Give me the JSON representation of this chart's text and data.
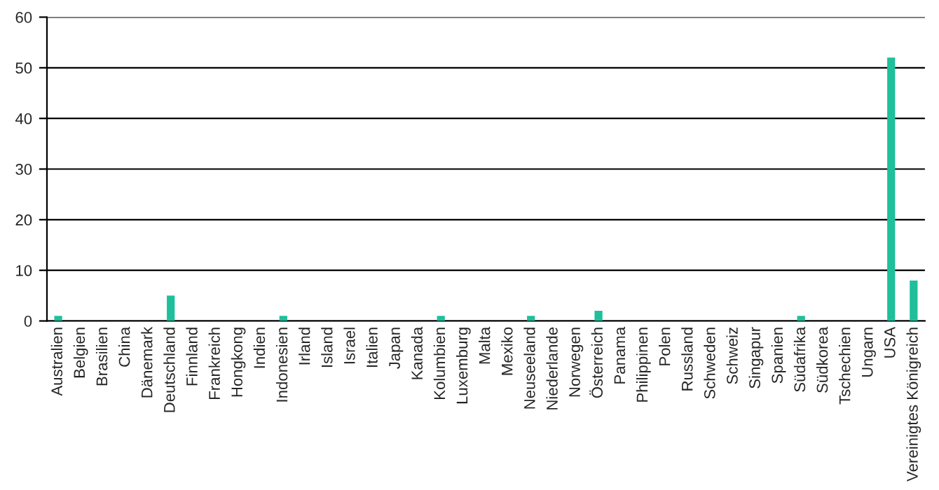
{
  "chart_data": {
    "type": "bar",
    "categories": [
      "Australien",
      "Belgien",
      "Brasilien",
      "China",
      "Dänemark",
      "Deutschland",
      "Finnland",
      "Frankreich",
      "Hongkong",
      "Indien",
      "Indonesien",
      "Irland",
      "Island",
      "Israel",
      "Italien",
      "Japan",
      "Kanada",
      "Kolumbien",
      "Luxemburg",
      "Malta",
      "Mexiko",
      "Neuseeland",
      "Niederlande",
      "Norwegen",
      "Österreich",
      "Panama",
      "Philippinen",
      "Polen",
      "Russland",
      "Schweden",
      "Schweiz",
      "Singapur",
      "Spanien",
      "Südafrika",
      "Südkorea",
      "Tschechien",
      "Ungarn",
      "USA",
      "Vereinigtes Königreich"
    ],
    "values": [
      1,
      0,
      0,
      0,
      0,
      5,
      0,
      0,
      0,
      0,
      1,
      0,
      0,
      0,
      0,
      0,
      0,
      1,
      0,
      0,
      0,
      1,
      0,
      0,
      2,
      0,
      0,
      0,
      0,
      0,
      0,
      0,
      0,
      1,
      0,
      0,
      0,
      52,
      8
    ],
    "color": "#1fbf9b",
    "ylim": [
      0,
      60
    ],
    "yticks": [
      0,
      10,
      20,
      30,
      40,
      50,
      60
    ],
    "grid": "y"
  }
}
